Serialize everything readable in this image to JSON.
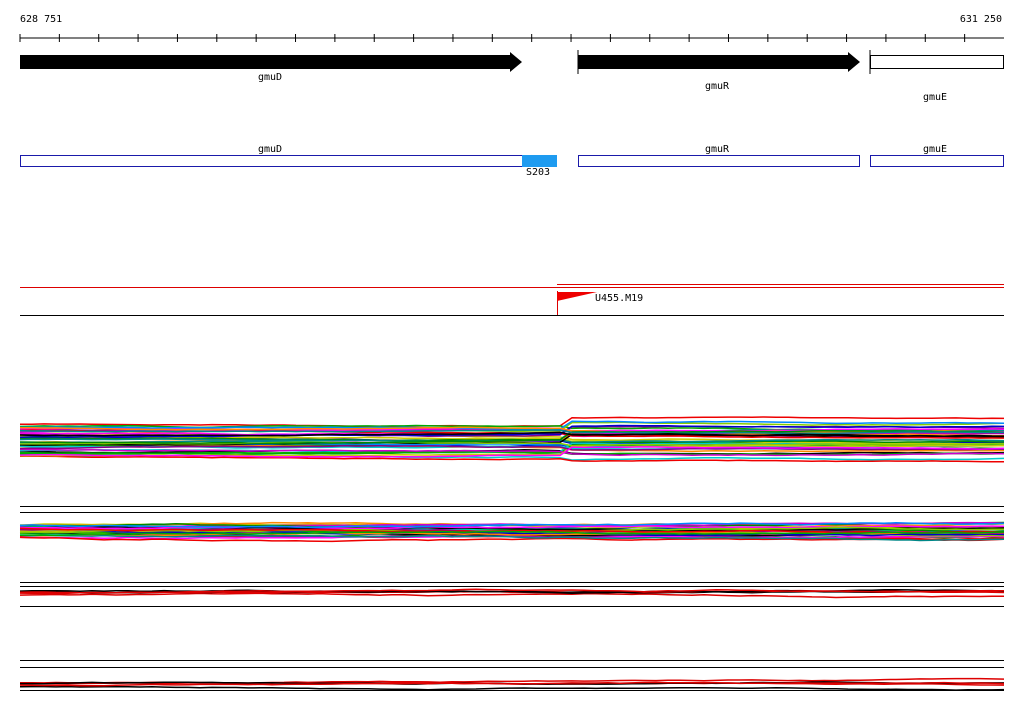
{
  "ruler": {
    "start": "628 751",
    "end": "631 250"
  },
  "genes": [
    {
      "label": "gmuD"
    },
    {
      "label": "gmuR"
    },
    {
      "label": "gmuE"
    }
  ],
  "features": [
    {
      "label": "gmuD"
    },
    {
      "label": "gmuR"
    },
    {
      "label": "gmuE"
    },
    {
      "label": "S203"
    }
  ],
  "markers": [
    {
      "label": "U455.M19"
    }
  ]
}
